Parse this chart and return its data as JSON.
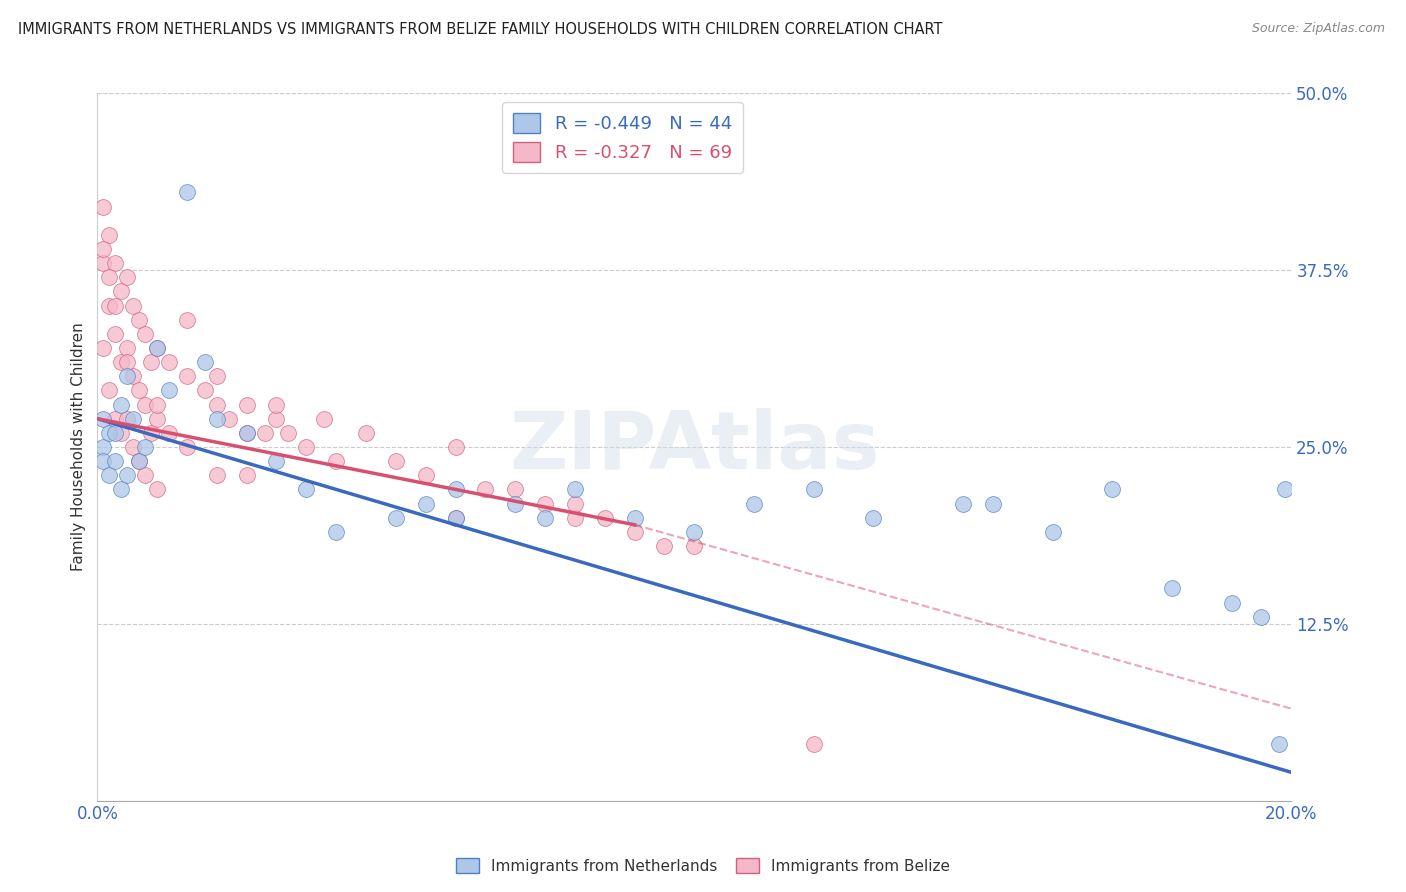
{
  "title": "IMMIGRANTS FROM NETHERLANDS VS IMMIGRANTS FROM BELIZE FAMILY HOUSEHOLDS WITH CHILDREN CORRELATION CHART",
  "source": "Source: ZipAtlas.com",
  "ylabel": "Family Households with Children",
  "legend_label1": "Immigrants from Netherlands",
  "legend_label2": "Immigrants from Belize",
  "R1": -0.449,
  "N1": 44,
  "R2": -0.327,
  "N2": 69,
  "color1": "#aec6e8",
  "color2": "#f5b8c8",
  "line_color1": "#3a6abf",
  "line_color2": "#d94f70",
  "watermark": "ZIPAtlas",
  "xlim": [
    0.0,
    0.2
  ],
  "ylim": [
    0.0,
    0.5
  ],
  "nl_line_x0": 0.0,
  "nl_line_y0": 0.27,
  "nl_line_x1": 0.2,
  "nl_line_y1": 0.02,
  "bz_line_x0": 0.0,
  "bz_line_y0": 0.27,
  "bz_line_x1_solid": 0.09,
  "bz_line_y1_solid": 0.195,
  "bz_line_x1_dash": 0.2,
  "bz_line_y1_dash": 0.065,
  "nl_x": [
    0.001,
    0.001,
    0.001,
    0.002,
    0.002,
    0.003,
    0.003,
    0.004,
    0.004,
    0.005,
    0.005,
    0.006,
    0.007,
    0.008,
    0.01,
    0.012,
    0.015,
    0.018,
    0.02,
    0.025,
    0.03,
    0.035,
    0.04,
    0.05,
    0.055,
    0.06,
    0.07,
    0.08,
    0.09,
    0.1,
    0.11,
    0.13,
    0.15,
    0.16,
    0.17,
    0.18,
    0.19,
    0.195,
    0.198,
    0.199,
    0.06,
    0.075,
    0.12,
    0.145
  ],
  "nl_y": [
    0.27,
    0.25,
    0.24,
    0.26,
    0.23,
    0.26,
    0.24,
    0.28,
    0.22,
    0.3,
    0.23,
    0.27,
    0.24,
    0.25,
    0.32,
    0.29,
    0.43,
    0.31,
    0.27,
    0.26,
    0.24,
    0.22,
    0.19,
    0.2,
    0.21,
    0.2,
    0.21,
    0.22,
    0.2,
    0.19,
    0.21,
    0.2,
    0.21,
    0.19,
    0.22,
    0.15,
    0.14,
    0.13,
    0.04,
    0.22,
    0.22,
    0.2,
    0.22,
    0.21
  ],
  "bz_x": [
    0.001,
    0.001,
    0.001,
    0.002,
    0.002,
    0.002,
    0.003,
    0.003,
    0.003,
    0.004,
    0.004,
    0.004,
    0.005,
    0.005,
    0.005,
    0.006,
    0.006,
    0.006,
    0.007,
    0.007,
    0.007,
    0.008,
    0.008,
    0.008,
    0.009,
    0.009,
    0.01,
    0.01,
    0.01,
    0.012,
    0.012,
    0.015,
    0.015,
    0.018,
    0.02,
    0.02,
    0.022,
    0.025,
    0.025,
    0.028,
    0.03,
    0.032,
    0.035,
    0.038,
    0.04,
    0.045,
    0.05,
    0.055,
    0.06,
    0.065,
    0.07,
    0.075,
    0.08,
    0.085,
    0.09,
    0.095,
    0.06,
    0.03,
    0.08,
    0.1,
    0.015,
    0.02,
    0.025,
    0.01,
    0.005,
    0.003,
    0.002,
    0.001,
    0.12
  ],
  "bz_y": [
    0.42,
    0.38,
    0.32,
    0.4,
    0.35,
    0.29,
    0.38,
    0.33,
    0.27,
    0.36,
    0.31,
    0.26,
    0.37,
    0.32,
    0.27,
    0.35,
    0.3,
    0.25,
    0.34,
    0.29,
    0.24,
    0.33,
    0.28,
    0.23,
    0.31,
    0.26,
    0.32,
    0.27,
    0.22,
    0.31,
    0.26,
    0.3,
    0.25,
    0.29,
    0.28,
    0.23,
    0.27,
    0.28,
    0.23,
    0.26,
    0.27,
    0.26,
    0.25,
    0.27,
    0.24,
    0.26,
    0.24,
    0.23,
    0.25,
    0.22,
    0.22,
    0.21,
    0.2,
    0.2,
    0.19,
    0.18,
    0.2,
    0.28,
    0.21,
    0.18,
    0.34,
    0.3,
    0.26,
    0.28,
    0.31,
    0.35,
    0.37,
    0.39,
    0.04
  ]
}
